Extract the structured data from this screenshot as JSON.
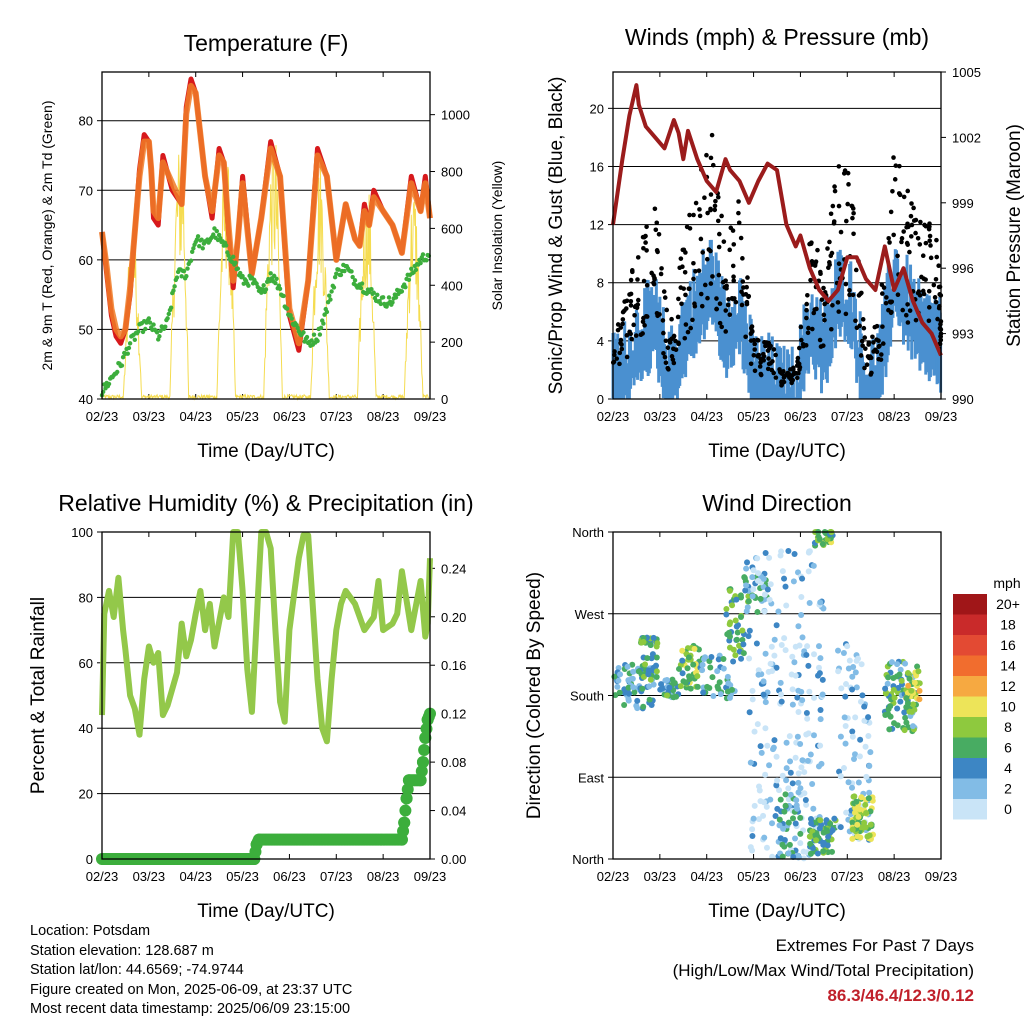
{
  "chart_data": [
    {
      "type": "line",
      "title": "Temperature (F)",
      "xlabel": "Time (Day/UTC)",
      "ylabel": "2m & 9m T (Red, Orange) & 2m Td (Green)",
      "ylabel_right": "Solar Insolation (Yellow)",
      "x_ticks": [
        "02/23",
        "03/23",
        "04/23",
        "05/23",
        "06/23",
        "07/23",
        "08/23",
        "09/23"
      ],
      "ylim": [
        40,
        87
      ],
      "y_ticks": [
        40,
        50,
        60,
        70,
        80
      ],
      "ylim_right": [
        0,
        1150
      ],
      "y_ticks_right": [
        0,
        200,
        400,
        600,
        800,
        1000
      ],
      "grid": true,
      "series": [
        {
          "key": "t2m",
          "color": "#d7191c",
          "x": [
            0,
            0.1,
            0.2,
            0.3,
            0.4,
            0.5,
            0.6,
            0.8,
            0.9,
            1.0,
            1.05,
            1.1,
            1.2,
            1.3,
            1.5,
            1.7,
            1.8,
            1.9,
            2.0,
            2.2,
            2.35,
            2.5,
            2.6,
            2.7,
            2.8,
            2.9,
            3.0,
            3.2,
            3.4,
            3.6,
            3.8,
            4.0,
            4.2,
            4.4,
            4.6,
            4.8,
            5.0,
            5.2,
            5.4,
            5.5,
            5.6,
            5.7,
            5.8,
            6.0,
            6.2,
            6.4,
            6.6,
            6.8,
            6.9,
            7.0
          ],
          "y": [
            64,
            58,
            52,
            49,
            48,
            50,
            55,
            73,
            78,
            77,
            73,
            66,
            65,
            75,
            70,
            68,
            82,
            86,
            84,
            72,
            66,
            76,
            74,
            64,
            56,
            63,
            72,
            58,
            66,
            77,
            72,
            52,
            47,
            57,
            76,
            72,
            60,
            68,
            63,
            62,
            68,
            65,
            70,
            67,
            65,
            61,
            72,
            67,
            72,
            66
          ]
        },
        {
          "key": "t9m",
          "color": "#f07c27",
          "x": [
            0,
            0.1,
            0.2,
            0.3,
            0.4,
            0.5,
            0.6,
            0.8,
            0.9,
            1.0,
            1.05,
            1.1,
            1.2,
            1.3,
            1.5,
            1.7,
            1.8,
            1.9,
            2.0,
            2.2,
            2.35,
            2.5,
            2.6,
            2.7,
            2.8,
            2.9,
            3.0,
            3.2,
            3.4,
            3.6,
            3.8,
            4.0,
            4.2,
            4.4,
            4.6,
            4.8,
            5.0,
            5.2,
            5.4,
            5.5,
            5.6,
            5.7,
            5.8,
            6.0,
            6.2,
            6.4,
            6.6,
            6.8,
            6.9,
            7.0
          ],
          "y": [
            64,
            59,
            53,
            50,
            49,
            50,
            56,
            72,
            77,
            77,
            73,
            67,
            66,
            74,
            71,
            68,
            81,
            85,
            84,
            72,
            67,
            75,
            74,
            65,
            57,
            63,
            71,
            58,
            66,
            76,
            72,
            53,
            48,
            57,
            75,
            72,
            60,
            68,
            63,
            62,
            67,
            65,
            69,
            67,
            65,
            61,
            71,
            67,
            71,
            66
          ]
        },
        {
          "key": "td2m",
          "color": "#3cae3c",
          "x": [
            0,
            0.2,
            0.4,
            0.6,
            0.8,
            1.0,
            1.2,
            1.4,
            1.6,
            1.8,
            2.0,
            2.2,
            2.4,
            2.6,
            2.8,
            3.0,
            3.2,
            3.4,
            3.6,
            3.8,
            4.0,
            4.2,
            4.4,
            4.6,
            4.8,
            5.0,
            5.2,
            5.4,
            5.6,
            5.8,
            6.0,
            6.2,
            6.4,
            6.6,
            6.8,
            7.0
          ],
          "y": [
            41,
            43,
            45,
            48,
            50,
            51,
            49,
            51,
            58,
            58,
            63,
            62,
            64,
            62,
            60,
            57,
            57,
            55,
            58,
            56,
            52,
            50,
            48,
            49,
            53,
            58,
            59,
            57,
            56,
            55,
            54,
            54,
            56,
            58,
            60,
            61
          ]
        }
      ],
      "series_right": [
        {
          "key": "solar",
          "color": "#f5dc50",
          "days": [
            0.4,
            0.7,
            1.1,
            1.5,
            1.9,
            2.3,
            2.7,
            3.1,
            3.5,
            3.9,
            4.3,
            4.7,
            5.1,
            5.5,
            5.9,
            6.3,
            6.7
          ],
          "peaks": [
            480,
            650,
            800,
            900,
            1120,
            950,
            880,
            1000,
            920,
            1050,
            780,
            860,
            880,
            760,
            820,
            700,
            760
          ]
        }
      ]
    },
    {
      "type": "line",
      "title": "Winds (mph) & Pressure (mb)",
      "xlabel": "Time (Day/UTC)",
      "ylabel": "Sonic/Prop Wind & Gust (Blue, Black)",
      "ylabel_right": "Station Pressure (Maroon)",
      "x_ticks": [
        "02/23",
        "03/23",
        "04/23",
        "05/23",
        "06/23",
        "07/23",
        "08/23",
        "09/23"
      ],
      "ylim": [
        0,
        22.5
      ],
      "y_ticks": [
        0,
        4,
        8,
        12,
        16,
        20
      ],
      "ylim_right": [
        990,
        1005
      ],
      "y_ticks_right": [
        990,
        993,
        996,
        999,
        1002,
        1005
      ],
      "grid": true,
      "series": [
        {
          "key": "wind",
          "color": "#4a90d0",
          "x": [
            0,
            0.3,
            0.6,
            0.9,
            1.2,
            1.5,
            1.8,
            2.1,
            2.4,
            2.7,
            3.0,
            3.3,
            3.6,
            3.9,
            4.2,
            4.5,
            4.8,
            5.1,
            5.4,
            5.7,
            6.0,
            6.3,
            6.6,
            6.9,
            7.0
          ],
          "y": [
            2,
            3,
            5,
            6,
            2,
            5,
            7,
            9,
            5,
            7,
            2,
            2,
            1,
            1,
            6,
            4,
            8,
            7,
            1,
            3,
            9,
            7,
            5,
            5,
            4
          ]
        },
        {
          "key": "gust",
          "color": "#000000",
          "x": [
            0,
            0.3,
            0.6,
            0.9,
            1.2,
            1.5,
            1.8,
            2.1,
            2.4,
            2.7,
            3.0,
            3.3,
            3.6,
            3.9,
            4.2,
            4.5,
            4.8,
            5.1,
            5.4,
            5.7,
            6.0,
            6.3,
            6.6,
            6.9,
            7.0
          ],
          "y": [
            4,
            7,
            11,
            13,
            4,
            10,
            14,
            17,
            10,
            13,
            4,
            4,
            2,
            2,
            11,
            8,
            15,
            14,
            3,
            6,
            16,
            13,
            11,
            11,
            7
          ]
        }
      ],
      "series_right": [
        {
          "key": "pressure",
          "color": "#9b1c1c",
          "x": [
            0,
            0.2,
            0.35,
            0.5,
            0.55,
            0.7,
            0.9,
            1.1,
            1.3,
            1.4,
            1.5,
            1.6,
            1.8,
            2.0,
            2.2,
            2.4,
            2.5,
            2.7,
            2.9,
            3.1,
            3.3,
            3.5,
            3.7,
            3.9,
            4.0,
            4.2,
            4.4,
            4.6,
            4.8,
            5.0,
            5.2,
            5.4,
            5.6,
            5.8,
            6.0,
            6.2,
            6.4,
            6.6,
            6.8,
            7.0
          ],
          "y": [
            998,
            1001,
            1003,
            1004.4,
            1003.5,
            1002.5,
            1002,
            1001.5,
            1002.8,
            1002.2,
            1001,
            1002.3,
            1001,
            1000,
            999.5,
            1001,
            1000.5,
            1000,
            999,
            1000,
            1000.8,
            1000.5,
            998,
            997,
            997.5,
            996,
            995,
            994.5,
            995,
            996.5,
            996.5,
            995.5,
            995,
            997,
            995,
            996,
            994.5,
            993.5,
            993,
            992
          ]
        }
      ]
    },
    {
      "type": "line",
      "title": "Relative Humidity (%) & Precipitation (in)",
      "xlabel": "Time (Day/UTC)",
      "ylabel": "Percent & Total Rainfall",
      "x_ticks": [
        "02/23",
        "03/23",
        "04/23",
        "05/23",
        "06/23",
        "07/23",
        "08/23",
        "09/23"
      ],
      "ylim": [
        0,
        100
      ],
      "y_ticks": [
        0,
        20,
        40,
        60,
        80,
        100
      ],
      "ylim_right": [
        0,
        0.27
      ],
      "y_ticks_right": [
        0.0,
        0.04,
        0.08,
        0.12,
        0.16,
        0.2,
        0.24
      ],
      "grid": true,
      "series": [
        {
          "key": "rh",
          "color": "#93c84a",
          "x": [
            0,
            0.05,
            0.15,
            0.25,
            0.35,
            0.45,
            0.5,
            0.6,
            0.7,
            0.8,
            0.9,
            1.0,
            1.1,
            1.2,
            1.3,
            1.4,
            1.6,
            1.7,
            1.8,
            1.9,
            2.0,
            2.1,
            2.2,
            2.3,
            2.4,
            2.6,
            2.7,
            2.8,
            2.9,
            3.0,
            3.1,
            3.2,
            3.4,
            3.5,
            3.6,
            3.7,
            3.8,
            3.9,
            4.0,
            4.2,
            4.3,
            4.4,
            4.6,
            4.7,
            4.8,
            4.9,
            5.0,
            5.1,
            5.2,
            5.4,
            5.6,
            5.7,
            5.8,
            5.9,
            6.0,
            6.2,
            6.3,
            6.4,
            6.6,
            6.8,
            6.9,
            6.95,
            7.0
          ],
          "y": [
            44,
            75,
            82,
            74,
            86,
            70,
            64,
            50,
            46,
            38,
            55,
            65,
            60,
            63,
            44,
            47,
            57,
            72,
            62,
            67,
            75,
            82,
            70,
            78,
            65,
            80,
            74,
            100,
            100,
            82,
            58,
            45,
            100,
            100,
            95,
            70,
            48,
            42,
            70,
            92,
            99,
            99,
            55,
            40,
            36,
            55,
            70,
            78,
            82,
            78,
            70,
            72,
            74,
            85,
            70,
            72,
            75,
            88,
            70,
            85,
            68,
            72,
            92
          ]
        },
        {
          "key": "rain",
          "color": "#3cae3c",
          "x": [
            0,
            3.25,
            3.3,
            3.35,
            6.4,
            6.45,
            6.5,
            6.55,
            6.8,
            6.85,
            6.9,
            6.95,
            7.0
          ],
          "y": [
            0,
            0,
            0.012,
            0.016,
            0.016,
            0.03,
            0.05,
            0.065,
            0.065,
            0.08,
            0.1,
            0.115,
            0.12
          ]
        }
      ]
    },
    {
      "type": "scatter",
      "title": "Wind Direction",
      "xlabel": "Time (Day/UTC)",
      "ylabel": "Direction (Colored By Speed)",
      "x_ticks": [
        "02/23",
        "03/23",
        "04/23",
        "05/23",
        "06/23",
        "07/23",
        "08/23",
        "09/23"
      ],
      "y_tick_labels": [
        "North",
        "East",
        "South",
        "West",
        "North"
      ],
      "ylim": [
        0,
        360
      ],
      "grid": true,
      "colorbar_title": "mph",
      "colorbar_labels": [
        "20+",
        "18",
        "16",
        "14",
        "12",
        "10",
        "8",
        "6",
        "4",
        "2",
        "0"
      ],
      "colorbar_colors": [
        "#a01618",
        "#c92a2a",
        "#e34a33",
        "#f16d2e",
        "#f6a941",
        "#ede459",
        "#8ec93e",
        "#48ac62",
        "#3d86c4",
        "#82bce6",
        "#c9e4f7"
      ],
      "clusters": [
        {
          "x0": 0.0,
          "x1": 0.9,
          "y": 190,
          "spread": 25,
          "speed": 4,
          "n": 70
        },
        {
          "x0": 0.55,
          "x1": 0.95,
          "y": 220,
          "spread": 25,
          "speed": 6,
          "n": 35
        },
        {
          "x0": 1.0,
          "x1": 1.4,
          "y": 188,
          "spread": 10,
          "speed": 5,
          "n": 30
        },
        {
          "x0": 1.4,
          "x1": 1.9,
          "y": 210,
          "spread": 25,
          "speed": 7,
          "n": 45
        },
        {
          "x0": 1.9,
          "x1": 2.6,
          "y": 200,
          "spread": 25,
          "speed": 4,
          "n": 40
        },
        {
          "x0": 2.4,
          "x1": 2.95,
          "y": 260,
          "spread": 40,
          "speed": 6,
          "n": 45
        },
        {
          "x0": 2.8,
          "x1": 3.3,
          "y": 300,
          "spread": 30,
          "speed": 4,
          "n": 30
        },
        {
          "x0": 2.9,
          "x1": 4.5,
          "y": 170,
          "spread": 170,
          "speed": 1,
          "n": 220
        },
        {
          "x0": 3.5,
          "x1": 4.0,
          "y": 40,
          "spread": 40,
          "speed": 4,
          "n": 45
        },
        {
          "x0": 4.2,
          "x1": 4.75,
          "y": 25,
          "spread": 20,
          "speed": 6,
          "n": 60
        },
        {
          "x0": 4.3,
          "x1": 4.7,
          "y": 355,
          "spread": 10,
          "speed": 7,
          "n": 30
        },
        {
          "x0": 4.8,
          "x1": 5.5,
          "y": 130,
          "spread": 110,
          "speed": 1,
          "n": 80
        },
        {
          "x0": 5.1,
          "x1": 5.55,
          "y": 45,
          "spread": 25,
          "speed": 8,
          "n": 60
        },
        {
          "x0": 5.8,
          "x1": 6.5,
          "y": 180,
          "spread": 40,
          "speed": 5,
          "n": 80
        },
        {
          "x0": 6.25,
          "x1": 6.55,
          "y": 185,
          "spread": 25,
          "speed": 9,
          "n": 30
        }
      ]
    }
  ],
  "info": {
    "location": "Location: Potsdam",
    "elevation": "Station elevation: 128.687 m",
    "latlon": "Station lat/lon: 44.6569; -74.9744",
    "created": "Figure created on Mon, 2025-06-09, at 23:37 UTC",
    "timestamp": "Most recent data timestamp: 2025/06/09 23:15:00"
  },
  "extremes": {
    "title": "Extremes For Past 7 Days",
    "subtitle": "(High/Low/Max Wind/Total Precipitation)",
    "values": "86.3/46.4/12.3/0.12"
  }
}
